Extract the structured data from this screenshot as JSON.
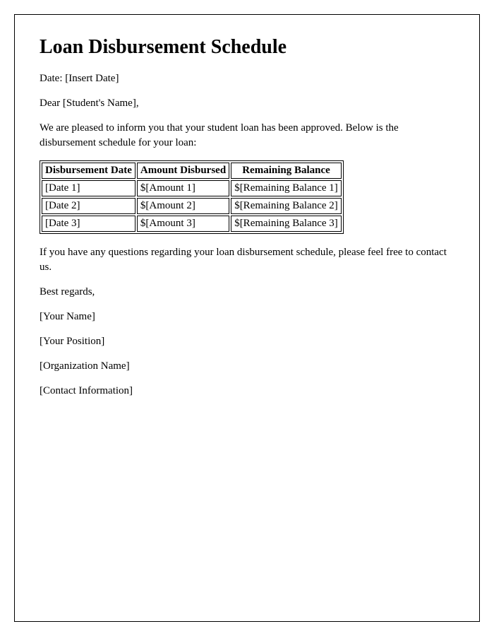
{
  "title": "Loan Disbursement Schedule",
  "date_line": "Date: [Insert Date]",
  "greeting": "Dear [Student's Name],",
  "intro": "We are pleased to inform you that your student loan has been approved. Below is the disbursement schedule for your loan:",
  "table": {
    "columns": [
      "Disbursement Date",
      "Amount Disbursed",
      "Remaining Balance"
    ],
    "rows": [
      [
        "[Date 1]",
        "$[Amount 1]",
        "$[Remaining Balance 1]"
      ],
      [
        "[Date 2]",
        "$[Amount 2]",
        "$[Remaining Balance 2]"
      ],
      [
        "[Date 3]",
        "$[Amount 3]",
        "$[Remaining Balance 3]"
      ]
    ]
  },
  "closing_note": "If you have any questions regarding your loan disbursement schedule, please feel free to contact us.",
  "signoff": "Best regards,",
  "signature": {
    "name": "[Your Name]",
    "position": "[Your Position]",
    "organization": "[Organization Name]",
    "contact": "[Contact Information]"
  },
  "styling": {
    "border_color": "#000000",
    "background_color": "#ffffff",
    "font_family": "Times New Roman",
    "title_fontsize": 28,
    "body_fontsize": 15
  }
}
